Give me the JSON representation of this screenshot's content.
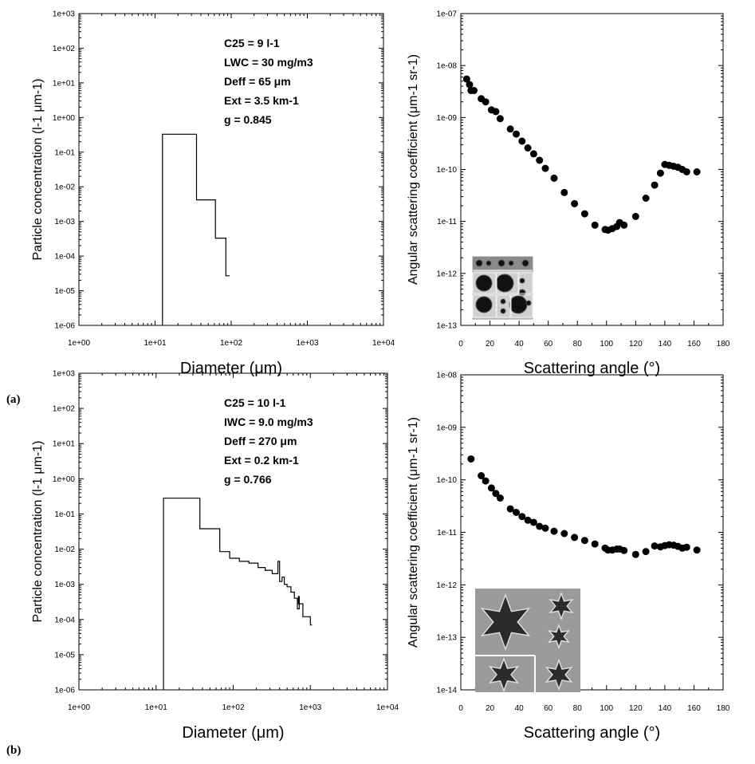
{
  "panel_labels": [
    "(a)",
    "(b)"
  ],
  "chart_data": [
    {
      "type": "line",
      "panel": "a",
      "xlabel": "Diameter (μm)",
      "ylabel": "Particle concentration (l-1 μm-1)",
      "xscale": "log",
      "yscale": "log",
      "xlim": [
        1,
        10000
      ],
      "ylim": [
        1e-06,
        1000
      ],
      "xticks": [
        "1e+00",
        "1e+01",
        "1e+02",
        "1e+03",
        "1e+04"
      ],
      "yticks": [
        "1e-06",
        "1e-05",
        "1e-04",
        "1e-03",
        "1e-02",
        "1e-01",
        "1e+00",
        "1e+01",
        "1e+02",
        "1e+03"
      ],
      "annotations": [
        "C25 = 9 l-1",
        "LWC = 30 mg/m3",
        "Deff = 65 μm",
        "Ext = 3.5 km-1",
        "g = 0.845"
      ],
      "step_x": [
        12.5,
        12.5,
        35,
        35,
        62,
        62,
        85,
        85,
        95
      ],
      "step_y": [
        1e-06,
        0.33,
        0.33,
        0.0042,
        0.0042,
        0.00033,
        0.00033,
        2.7e-05,
        2.7e-05
      ]
    },
    {
      "type": "scatter",
      "panel": "a",
      "xlabel": "Scattering angle (°)",
      "ylabel": "Angular scattering coefficient (μm-1 sr-1)",
      "yscale": "log",
      "xlim": [
        0,
        180
      ],
      "ylim": [
        1e-13,
        1e-07
      ],
      "xticks": [
        "0",
        "20",
        "40",
        "60",
        "80",
        "100",
        "120",
        "140",
        "160",
        "180"
      ],
      "yticks": [
        "1e-13",
        "1e-12",
        "1e-11",
        "1e-10",
        "1e-09",
        "1e-08",
        "1e-07"
      ],
      "x": [
        4,
        6,
        7,
        9,
        14,
        17,
        21,
        24,
        27,
        34,
        38,
        42,
        46,
        50,
        54,
        58,
        64,
        71,
        78,
        85,
        92,
        99,
        101,
        104,
        107,
        109,
        112,
        120,
        127,
        133,
        137,
        140,
        143,
        146,
        149,
        152,
        155,
        162
      ],
      "y": [
        5.5e-09,
        4.3e-09,
        3.3e-09,
        3.3e-09,
        2.3e-09,
        2e-09,
        1.4e-09,
        1.3e-09,
        9.5e-10,
        6e-10,
        4.8e-10,
        3.5e-10,
        2.6e-10,
        2e-10,
        1.5e-10,
        1.05e-10,
        6.8e-11,
        3.6e-11,
        2.2e-11,
        1.4e-11,
        8.5e-12,
        7e-12,
        6.8e-12,
        7.3e-12,
        8e-12,
        9.5e-12,
        8.5e-12,
        1.25e-11,
        2.8e-11,
        5e-11,
        8.5e-11,
        1.25e-10,
        1.2e-10,
        1.15e-10,
        1.1e-10,
        1e-10,
        9e-11,
        9e-11
      ]
    },
    {
      "type": "line",
      "panel": "b",
      "xlabel": "Diameter (μm)",
      "ylabel": "Particle concentration (l-1 μm-1)",
      "xscale": "log",
      "yscale": "log",
      "xlim": [
        1,
        10000
      ],
      "ylim": [
        1e-06,
        1000
      ],
      "xticks": [
        "1e+00",
        "1e+01",
        "1e+02",
        "1e+03",
        "1e+04"
      ],
      "yticks": [
        "1e-06",
        "1e-05",
        "1e-04",
        "1e-03",
        "1e-02",
        "1e-01",
        "1e+00",
        "1e+01",
        "1e+02",
        "1e+03"
      ],
      "annotations": [
        "C25 = 10 l-1",
        "IWC = 9.0 mg/m3",
        "Deff = 270 μm",
        "Ext = 0.2 km-1",
        "g = 0.766"
      ],
      "step_x": [
        12.5,
        12.5,
        37,
        37,
        67,
        67,
        90,
        90,
        120,
        120,
        160,
        160,
        210,
        210,
        260,
        260,
        320,
        320,
        380,
        380,
        400,
        400,
        430,
        430,
        460,
        460,
        500,
        500,
        560,
        560,
        620,
        620,
        680,
        680,
        720,
        720,
        700,
        700,
        800,
        800,
        1000,
        1000,
        1050
      ],
      "step_y": [
        1e-06,
        0.28,
        0.28,
        0.038,
        0.038,
        0.0085,
        0.0085,
        0.0055,
        0.0055,
        0.0045,
        0.0045,
        0.004,
        0.004,
        0.003,
        0.003,
        0.0025,
        0.0025,
        0.002,
        0.002,
        0.0045,
        0.0045,
        0.0012,
        0.0012,
        0.0016,
        0.0016,
        0.001,
        0.001,
        0.00085,
        0.00085,
        0.0006,
        0.0006,
        0.0004,
        0.0004,
        0.0002,
        0.0002,
        0.00045,
        0.00045,
        0.00028,
        0.00028,
        0.00012,
        0.00012,
        7e-05,
        7e-05
      ]
    },
    {
      "type": "scatter",
      "panel": "b",
      "xlabel": "Scattering angle (°)",
      "ylabel": "Angular scattering coefficient (μm-1 sr-1)",
      "yscale": "log",
      "xlim": [
        0,
        180
      ],
      "ylim": [
        1e-14,
        1e-08
      ],
      "xticks": [
        "0",
        "20",
        "40",
        "60",
        "80",
        "100",
        "120",
        "140",
        "160",
        "180"
      ],
      "yticks": [
        "1e-14",
        "1e-13",
        "1e-12",
        "1e-11",
        "1e-10",
        "1e-09",
        "1e-08"
      ],
      "x": [
        7,
        14,
        17,
        21,
        24,
        27,
        34,
        38,
        42,
        46,
        50,
        54,
        58,
        64,
        71,
        78,
        85,
        92,
        99,
        101,
        104,
        107,
        109,
        112,
        120,
        127,
        133,
        137,
        140,
        143,
        146,
        149,
        152,
        155,
        162
      ],
      "y": [
        2.5e-10,
        1.2e-10,
        9.5e-11,
        7e-11,
        5.5e-11,
        4.5e-11,
        2.8e-11,
        2.4e-11,
        2e-11,
        1.7e-11,
        1.55e-11,
        1.3e-11,
        1.2e-11,
        1.05e-11,
        9.5e-12,
        8e-12,
        7e-12,
        6e-12,
        5e-12,
        4.6e-12,
        4.6e-12,
        4.8e-12,
        4.8e-12,
        4.5e-12,
        3.8e-12,
        4.3e-12,
        5.5e-12,
        5.3e-12,
        5.6e-12,
        5.8e-12,
        5.7e-12,
        5.4e-12,
        5e-12,
        5.2e-12,
        4.6e-12
      ]
    }
  ]
}
